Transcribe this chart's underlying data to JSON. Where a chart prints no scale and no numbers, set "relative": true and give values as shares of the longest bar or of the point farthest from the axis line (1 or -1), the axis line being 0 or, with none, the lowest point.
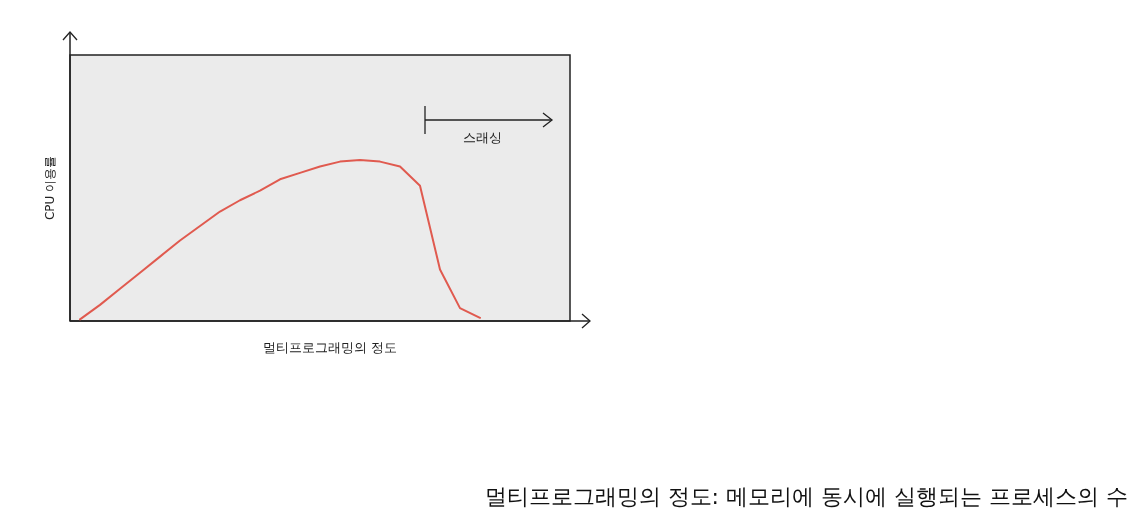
{
  "chart_data": {
    "type": "line",
    "relative": true,
    "xlabel": "멀티프로그래밍의 정도",
    "ylabel": "CPU 이용률",
    "annotations": [
      "스래싱",
      "멀티프로그래밍의 정도: 메모리에 동시에 실행되는 프로세스의 수"
    ],
    "categories": [
      null,
      null,
      null,
      null,
      null,
      null,
      null,
      null,
      null,
      null,
      null,
      null,
      null,
      null,
      null,
      null,
      null,
      null,
      null,
      null,
      null,
      null,
      null,
      null,
      null
    ],
    "series": [
      {
        "color": "#e05a4f",
        "values": [
          0.01,
          0.1,
          0.2,
          0.3,
          0.4,
          0.5,
          0.59,
          0.68,
          0.75,
          0.81,
          0.88,
          0.92,
          0.96,
          0.99,
          1.0,
          0.99,
          0.96,
          0.84,
          0.32,
          0.08,
          0.02,
          null,
          null,
          null,
          null
        ]
      }
    ],
    "grid": false
  }
}
